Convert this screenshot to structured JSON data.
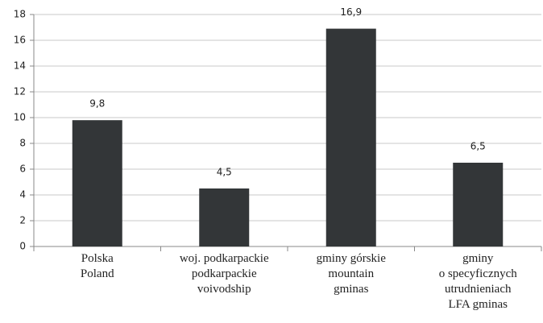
{
  "chart_data": {
    "type": "bar",
    "categories": [
      "Polska\nPoland",
      "woj. podkarpackie\npodkarpackie\nvoivodship",
      "gminy górskie\nmountain\ngminas",
      "gminy\no specyficznych\nutrudnieniach\nLFA gminas"
    ],
    "values": [
      9.8,
      4.5,
      16.9,
      6.5
    ],
    "value_labels": [
      "9,8",
      "4,5",
      "16,9",
      "6,5"
    ],
    "color": "#333638",
    "ylim": [
      0,
      18
    ],
    "yticks": [
      0,
      2,
      4,
      6,
      8,
      10,
      12,
      14,
      16,
      18
    ],
    "grid": true
  }
}
